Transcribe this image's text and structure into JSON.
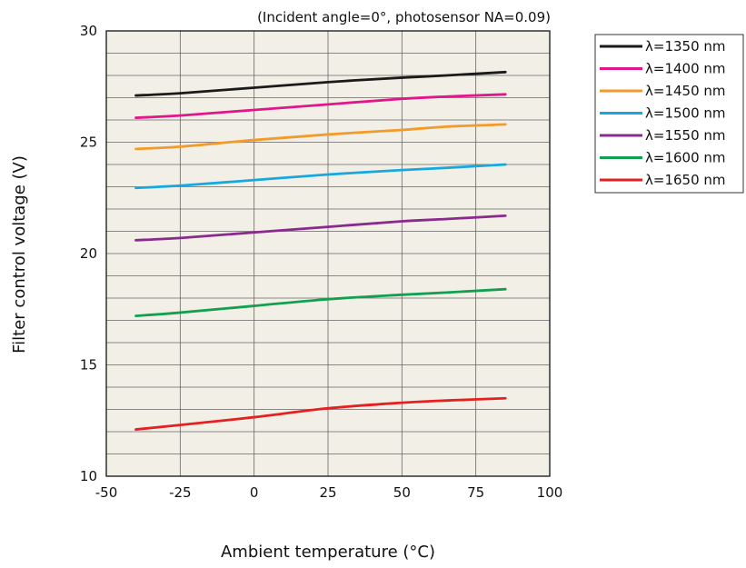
{
  "chart_data": {
    "type": "line",
    "title": "",
    "subtitle": "(Incident angle=0°, photosensor NA=0.09)",
    "xlabel": "Ambient temperature (°C)",
    "ylabel": "Filter control voltage (V)",
    "xlim": [
      -50,
      100
    ],
    "ylim": [
      10,
      30
    ],
    "xticks": [
      -50,
      -25,
      0,
      25,
      50,
      75,
      100
    ],
    "xtick_labels": [
      "-50",
      "-25",
      "0",
      "25",
      "50",
      "75",
      "100"
    ],
    "yticks": [
      10,
      15,
      20,
      25,
      30
    ],
    "ytick_labels": [
      "10",
      "15",
      "20",
      "25",
      "30"
    ],
    "x_grid_step": 25,
    "y_grid_step": 1,
    "grid": true,
    "plot_background": "#f2f0e6",
    "legend_position": "top-right, outside plot",
    "x": [
      -40,
      -25,
      0,
      25,
      50,
      65,
      85
    ],
    "series": [
      {
        "name": "λ=1350 nm",
        "color": "#1a1a1a",
        "values": [
          27.1,
          27.2,
          27.45,
          27.7,
          27.9,
          28.0,
          28.15
        ]
      },
      {
        "name": "λ=1400 nm",
        "color": "#e0168a",
        "values": [
          26.1,
          26.2,
          26.45,
          26.7,
          26.95,
          27.05,
          27.15
        ]
      },
      {
        "name": "λ=1450 nm",
        "color": "#f39a2a",
        "values": [
          24.7,
          24.8,
          25.1,
          25.35,
          25.55,
          25.7,
          25.8
        ]
      },
      {
        "name": "λ=1500 nm",
        "color": "#18a8e0",
        "values": [
          22.95,
          23.05,
          23.3,
          23.55,
          23.75,
          23.85,
          24.0
        ]
      },
      {
        "name": "λ=1550 nm",
        "color": "#8a2a8e",
        "values": [
          20.6,
          20.7,
          20.95,
          21.2,
          21.45,
          21.55,
          21.7
        ]
      },
      {
        "name": "λ=1600 nm",
        "color": "#12a050",
        "values": [
          17.2,
          17.35,
          17.65,
          17.95,
          18.15,
          18.25,
          18.4
        ]
      },
      {
        "name": "λ=1650 nm",
        "color": "#e62020",
        "values": [
          12.1,
          12.3,
          12.65,
          13.05,
          13.3,
          13.4,
          13.5
        ]
      }
    ]
  }
}
